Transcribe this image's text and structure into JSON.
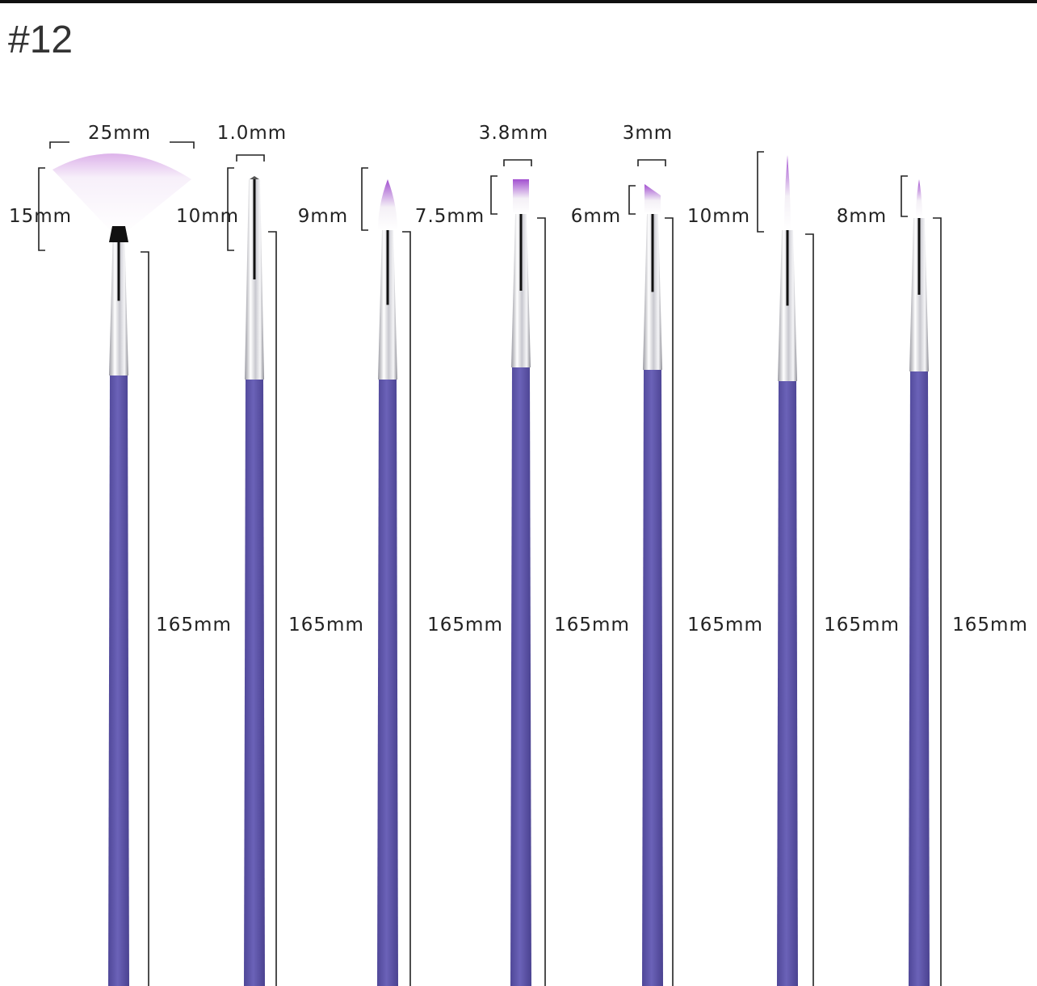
{
  "title": "#12",
  "colors": {
    "handle": "#6b62b8",
    "ferrule": "#d9d9de",
    "bristle_tip": "#a24fd0",
    "bristle": "#f4f0f6"
  },
  "brushes": [
    {
      "type": "fan",
      "width_label": "25mm",
      "head_label": "15mm",
      "length_label": "165mm"
    },
    {
      "type": "liner",
      "width_label": "1.0mm",
      "head_label": "10mm",
      "length_label": "165mm"
    },
    {
      "type": "round",
      "width_label": "",
      "head_label": "9mm",
      "length_label": "165mm"
    },
    {
      "type": "flat",
      "width_label": "3.8mm",
      "head_label": "7.5mm",
      "length_label": "165mm"
    },
    {
      "type": "angled",
      "width_label": "3mm",
      "head_label": "6mm",
      "length_label": "165mm"
    },
    {
      "type": "striper",
      "width_label": "",
      "head_label": "10mm",
      "length_label": "165mm"
    },
    {
      "type": "detail",
      "width_label": "",
      "head_label": "8mm",
      "length_label": "165mm"
    }
  ]
}
